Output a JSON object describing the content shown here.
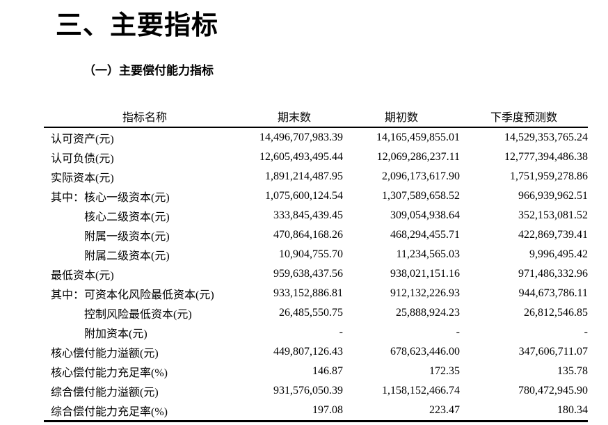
{
  "page": {
    "title": "三、主要指标",
    "subtitle": "（一）主要偿付能力指标"
  },
  "table": {
    "columns": [
      "指标名称",
      "期末数",
      "期初数",
      "下季度预测数"
    ],
    "rows": [
      {
        "label": "认可资产(元)",
        "indent": 0,
        "values": [
          "14,496,707,983.39",
          "14,165,459,855.01",
          "14,529,353,765.24"
        ]
      },
      {
        "label": "认可负债(元)",
        "indent": 0,
        "values": [
          "12,605,493,495.44",
          "12,069,286,237.11",
          "12,777,394,486.38"
        ]
      },
      {
        "label": "实际资本(元)",
        "indent": 0,
        "values": [
          "1,891,214,487.95",
          "2,096,173,617.90",
          "1,751,959,278.86"
        ]
      },
      {
        "label": "其中：核心一级资本(元)",
        "indent": 0,
        "values": [
          "1,075,600,124.54",
          "1,307,589,658.52",
          "966,939,962.51"
        ]
      },
      {
        "label": "核心二级资本(元)",
        "indent": 1,
        "values": [
          "333,845,439.45",
          "309,054,938.64",
          "352,153,081.52"
        ]
      },
      {
        "label": "附属一级资本(元)",
        "indent": 1,
        "values": [
          "470,864,168.26",
          "468,294,455.71",
          "422,869,739.41"
        ]
      },
      {
        "label": "附属二级资本(元)",
        "indent": 1,
        "values": [
          "10,904,755.70",
          "11,234,565.03",
          "9,996,495.42"
        ]
      },
      {
        "label": "最低资本(元)",
        "indent": 0,
        "values": [
          "959,638,437.56",
          "938,021,151.16",
          "971,486,332.96"
        ]
      },
      {
        "label": "其中：可资本化风险最低资本(元)",
        "indent": 0,
        "values": [
          "933,152,886.81",
          "912,132,226.93",
          "944,673,786.11"
        ]
      },
      {
        "label": "控制风险最低资本(元)",
        "indent": 1,
        "values": [
          "26,485,550.75",
          "25,888,924.23",
          "26,812,546.85"
        ]
      },
      {
        "label": "附加资本(元)",
        "indent": 1,
        "values": [
          "-",
          "-",
          "-"
        ]
      },
      {
        "label": "核心偿付能力溢额(元)",
        "indent": 0,
        "values": [
          "449,807,126.43",
          "678,623,446.00",
          "347,606,711.07"
        ]
      },
      {
        "label": "核心偿付能力充足率(%)",
        "indent": 0,
        "values": [
          "146.87",
          "172.35",
          "135.78"
        ]
      },
      {
        "label": "综合偿付能力溢额(元)",
        "indent": 0,
        "values": [
          "931,576,050.39",
          "1,158,152,466.74",
          "780,472,945.90"
        ]
      },
      {
        "label": "综合偿付能力充足率(%)",
        "indent": 0,
        "values": [
          "197.08",
          "223.47",
          "180.34"
        ]
      }
    ]
  }
}
